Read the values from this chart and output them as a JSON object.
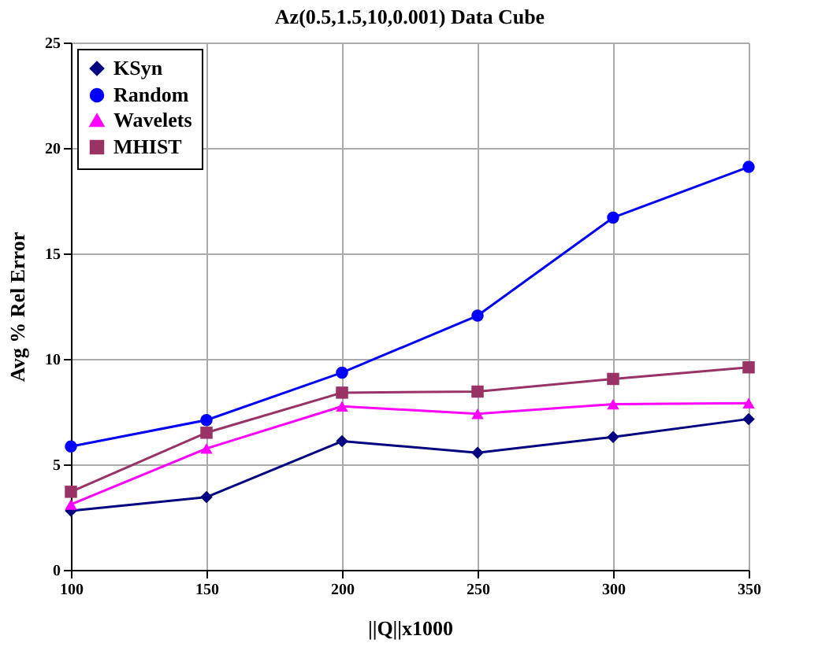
{
  "chart_data": {
    "type": "line",
    "title": "Az(0.5,1.5,10,0.001) Data Cube",
    "xlabel": "||Q||x1000",
    "ylabel": "Avg % Rel Error",
    "x": [
      100,
      150,
      200,
      250,
      300,
      350
    ],
    "xlim": [
      100,
      350
    ],
    "xticks": [
      100,
      150,
      200,
      250,
      300,
      350
    ],
    "ylim": [
      0,
      25
    ],
    "yticks": [
      0,
      5,
      10,
      15,
      20,
      25
    ],
    "grid": true,
    "legend": "top left",
    "line_style": "solid",
    "series": [
      {
        "name": "KSyn",
        "color": "#000080",
        "marker": "diamond",
        "values": [
          2.8,
          3.45,
          6.1,
          5.55,
          6.3,
          7.15
        ]
      },
      {
        "name": "Random",
        "color": "#0000ff",
        "marker": "circle",
        "values": [
          5.85,
          7.1,
          9.35,
          12.05,
          16.7,
          19.1
        ]
      },
      {
        "name": "Wavelets",
        "color": "#ff00ff",
        "marker": "triangle",
        "values": [
          3.1,
          5.75,
          7.75,
          7.4,
          7.85,
          7.9
        ]
      },
      {
        "name": "MHIST",
        "color": "#993366",
        "marker": "square",
        "values": [
          3.7,
          6.5,
          8.4,
          8.45,
          9.05,
          9.6
        ]
      }
    ]
  }
}
